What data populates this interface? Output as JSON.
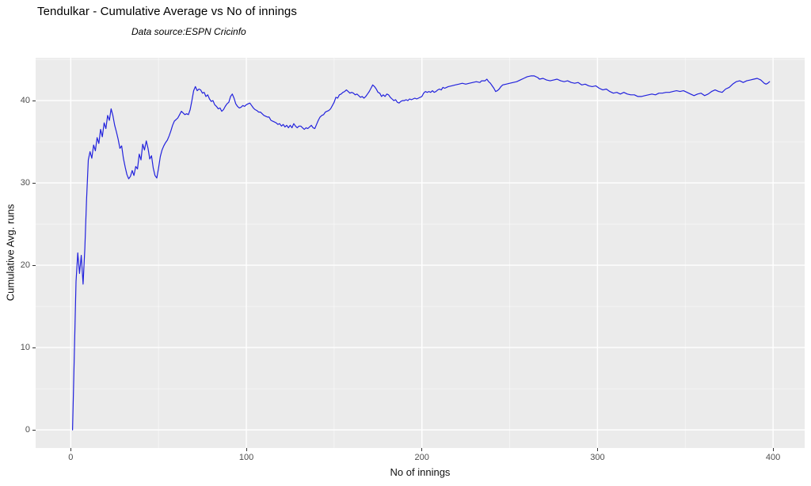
{
  "header": {
    "title": "Tendulkar - Cumulative Average vs No of innings",
    "subtitle": "Data source:ESPN Cricinfo"
  },
  "chart_data": {
    "type": "line",
    "title": "Tendulkar - Cumulative Average vs No of innings",
    "subtitle": "Data source:ESPN Cricinfo",
    "xlabel": "No of innings",
    "ylabel": "Cumulative Avg. runs",
    "x_ticks": [
      0,
      100,
      200,
      300,
      400
    ],
    "x_minor_ticks": [
      50,
      150,
      250,
      350
    ],
    "y_ticks": [
      0,
      10,
      20,
      30,
      40
    ],
    "y_minor_ticks": [
      5,
      15,
      25,
      35,
      45
    ],
    "xlim": [
      -20,
      418
    ],
    "ylim": [
      -2.2,
      45.2
    ],
    "grid": "major-and-minor-white",
    "legend": "none",
    "panel_bg": "#EBEBEB",
    "grid_major_color": "#FFFFFF",
    "grid_minor_color": "#FFFFFF",
    "line_color": "#2222DD",
    "axis_text_color": "#4D4D4D",
    "tick_mark_color": "#333333",
    "series": [
      {
        "name": "Cumulative average runs",
        "points": [
          [
            1,
            0
          ],
          [
            2,
            9
          ],
          [
            3,
            18
          ],
          [
            4,
            21.5
          ],
          [
            5,
            19
          ],
          [
            6,
            21.2
          ],
          [
            7,
            17.7
          ],
          [
            8,
            22
          ],
          [
            9,
            28
          ],
          [
            10,
            32.8
          ],
          [
            11,
            33.8
          ],
          [
            12,
            33
          ],
          [
            13,
            34.6
          ],
          [
            14,
            33.9
          ],
          [
            15,
            35.5
          ],
          [
            16,
            34.8
          ],
          [
            17,
            36.5
          ],
          [
            18,
            35.6
          ],
          [
            19,
            37.3
          ],
          [
            20,
            36.6
          ],
          [
            21,
            38.2
          ],
          [
            22,
            37.6
          ],
          [
            23,
            39
          ],
          [
            24,
            38.2
          ],
          [
            25,
            37
          ],
          [
            26,
            36.2
          ],
          [
            27,
            35.3
          ],
          [
            28,
            34.2
          ],
          [
            29,
            34.5
          ],
          [
            30,
            33
          ],
          [
            31,
            31.9
          ],
          [
            32,
            31
          ],
          [
            33,
            30.5
          ],
          [
            34,
            30.8
          ],
          [
            35,
            31.5
          ],
          [
            36,
            30.9
          ],
          [
            37,
            32
          ],
          [
            38,
            31.7
          ],
          [
            39,
            33.5
          ],
          [
            40,
            32.8
          ],
          [
            41,
            34.7
          ],
          [
            42,
            34
          ],
          [
            43,
            35.1
          ],
          [
            44,
            34.2
          ],
          [
            45,
            32.9
          ],
          [
            46,
            33.3
          ],
          [
            47,
            31.8
          ],
          [
            48,
            30.9
          ],
          [
            49,
            30.6
          ],
          [
            50,
            31.8
          ],
          [
            51,
            33.2
          ],
          [
            52,
            34
          ],
          [
            53,
            34.5
          ],
          [
            54,
            34.9
          ],
          [
            55,
            35.2
          ],
          [
            56,
            35.7
          ],
          [
            57,
            36.3
          ],
          [
            58,
            37
          ],
          [
            59,
            37.5
          ],
          [
            60,
            37.7
          ],
          [
            61,
            37.9
          ],
          [
            62,
            38.3
          ],
          [
            63,
            38.7
          ],
          [
            64,
            38.5
          ],
          [
            65,
            38.3
          ],
          [
            66,
            38.4
          ],
          [
            67,
            38.3
          ],
          [
            68,
            38.9
          ],
          [
            69,
            40
          ],
          [
            70,
            41.2
          ],
          [
            71,
            41.7
          ],
          [
            72,
            41.2
          ],
          [
            73,
            41.4
          ],
          [
            74,
            41.3
          ],
          [
            75,
            40.9
          ],
          [
            76,
            41
          ],
          [
            77,
            40.5
          ],
          [
            78,
            40.7
          ],
          [
            79,
            40.2
          ],
          [
            80,
            39.9
          ],
          [
            81,
            40
          ],
          [
            82,
            39.5
          ],
          [
            83,
            39.3
          ],
          [
            84,
            39
          ],
          [
            85,
            39.1
          ],
          [
            86,
            38.7
          ],
          [
            87,
            38.9
          ],
          [
            88,
            39.3
          ],
          [
            89,
            39.6
          ],
          [
            90,
            39.8
          ],
          [
            91,
            40.5
          ],
          [
            92,
            40.8
          ],
          [
            93,
            40.3
          ],
          [
            94,
            39.6
          ],
          [
            95,
            39.3
          ],
          [
            96,
            39.1
          ],
          [
            97,
            39.2
          ],
          [
            98,
            39.4
          ],
          [
            99,
            39.3
          ],
          [
            100,
            39.5
          ],
          [
            101,
            39.6
          ],
          [
            102,
            39.7
          ],
          [
            103,
            39.4
          ],
          [
            104,
            39.1
          ],
          [
            105,
            38.9
          ],
          [
            106,
            38.8
          ],
          [
            107,
            38.6
          ],
          [
            108,
            38.6
          ],
          [
            109,
            38.4
          ],
          [
            110,
            38.2
          ],
          [
            111,
            38.1
          ],
          [
            112,
            38
          ],
          [
            113,
            38
          ],
          [
            114,
            37.6
          ],
          [
            115,
            37.5
          ],
          [
            116,
            37.4
          ],
          [
            117,
            37.3
          ],
          [
            118,
            37.1
          ],
          [
            119,
            37.2
          ],
          [
            120,
            36.9
          ],
          [
            121,
            37.1
          ],
          [
            122,
            36.8
          ],
          [
            123,
            37
          ],
          [
            124,
            36.7
          ],
          [
            125,
            37
          ],
          [
            126,
            36.7
          ],
          [
            127,
            37.2
          ],
          [
            128,
            36.9
          ],
          [
            129,
            36.7
          ],
          [
            130,
            36.9
          ],
          [
            131,
            36.9
          ],
          [
            132,
            36.7
          ],
          [
            133,
            36.5
          ],
          [
            134,
            36.7
          ],
          [
            135,
            36.6
          ],
          [
            136,
            36.8
          ],
          [
            137,
            37
          ],
          [
            138,
            36.7
          ],
          [
            139,
            36.6
          ],
          [
            140,
            37.1
          ],
          [
            141,
            37.6
          ],
          [
            142,
            38
          ],
          [
            143,
            38.2
          ],
          [
            144,
            38.3
          ],
          [
            145,
            38.6
          ],
          [
            146,
            38.7
          ],
          [
            147,
            38.8
          ],
          [
            148,
            39
          ],
          [
            149,
            39.4
          ],
          [
            150,
            39.8
          ],
          [
            151,
            40.4
          ],
          [
            152,
            40.3
          ],
          [
            153,
            40.7
          ],
          [
            154,
            40.8
          ],
          [
            155,
            41
          ],
          [
            156,
            41.1
          ],
          [
            157,
            41.3
          ],
          [
            158,
            41.1
          ],
          [
            159,
            40.9
          ],
          [
            160,
            41
          ],
          [
            161,
            40.9
          ],
          [
            162,
            40.7
          ],
          [
            163,
            40.8
          ],
          [
            164,
            40.6
          ],
          [
            165,
            40.4
          ],
          [
            166,
            40.5
          ],
          [
            167,
            40.3
          ],
          [
            168,
            40.5
          ],
          [
            169,
            40.8
          ],
          [
            170,
            41.1
          ],
          [
            171,
            41.5
          ],
          [
            172,
            41.9
          ],
          [
            173,
            41.7
          ],
          [
            174,
            41.4
          ],
          [
            175,
            41
          ],
          [
            176,
            40.9
          ],
          [
            177,
            40.5
          ],
          [
            178,
            40.7
          ],
          [
            179,
            40.5
          ],
          [
            180,
            40.8
          ],
          [
            181,
            40.7
          ],
          [
            182,
            40.4
          ],
          [
            183,
            40.2
          ],
          [
            184,
            40
          ],
          [
            185,
            40.1
          ],
          [
            186,
            39.8
          ],
          [
            187,
            39.7
          ],
          [
            188,
            39.9
          ],
          [
            189,
            40
          ],
          [
            190,
            40
          ],
          [
            191,
            40.1
          ],
          [
            192,
            40
          ],
          [
            193,
            40.2
          ],
          [
            194,
            40.1
          ],
          [
            195,
            40.2
          ],
          [
            196,
            40.3
          ],
          [
            197,
            40.2
          ],
          [
            198,
            40.3
          ],
          [
            199,
            40.4
          ],
          [
            200,
            40.5
          ],
          [
            201,
            40.9
          ],
          [
            202,
            41.1
          ],
          [
            203,
            41
          ],
          [
            204,
            41.1
          ],
          [
            205,
            41
          ],
          [
            206,
            41.2
          ],
          [
            207,
            41
          ],
          [
            208,
            41.1
          ],
          [
            209,
            41.3
          ],
          [
            210,
            41.4
          ],
          [
            211,
            41.3
          ],
          [
            212,
            41.6
          ],
          [
            213,
            41.5
          ],
          [
            214,
            41.6
          ],
          [
            215,
            41.7
          ],
          [
            217,
            41.8
          ],
          [
            219,
            41.9
          ],
          [
            221,
            42
          ],
          [
            223,
            42.1
          ],
          [
            225,
            42
          ],
          [
            227,
            42.1
          ],
          [
            229,
            42.2
          ],
          [
            231,
            42.3
          ],
          [
            233,
            42.2
          ],
          [
            234,
            42.4
          ],
          [
            236,
            42.4
          ],
          [
            237,
            42.6
          ],
          [
            238,
            42.3
          ],
          [
            239,
            42.1
          ],
          [
            240,
            41.8
          ],
          [
            241,
            41.5
          ],
          [
            242,
            41.1
          ],
          [
            243,
            41.2
          ],
          [
            244,
            41.4
          ],
          [
            245,
            41.7
          ],
          [
            246,
            41.9
          ],
          [
            248,
            42
          ],
          [
            250,
            42.1
          ],
          [
            252,
            42.2
          ],
          [
            254,
            42.3
          ],
          [
            256,
            42.5
          ],
          [
            258,
            42.7
          ],
          [
            260,
            42.9
          ],
          [
            262,
            43
          ],
          [
            264,
            43
          ],
          [
            266,
            42.8
          ],
          [
            267,
            42.6
          ],
          [
            269,
            42.7
          ],
          [
            271,
            42.5
          ],
          [
            273,
            42.4
          ],
          [
            275,
            42.5
          ],
          [
            277,
            42.6
          ],
          [
            279,
            42.4
          ],
          [
            281,
            42.3
          ],
          [
            283,
            42.4
          ],
          [
            285,
            42.2
          ],
          [
            287,
            42.1
          ],
          [
            289,
            42.2
          ],
          [
            291,
            41.9
          ],
          [
            293,
            42
          ],
          [
            295,
            41.8
          ],
          [
            297,
            41.7
          ],
          [
            299,
            41.8
          ],
          [
            301,
            41.5
          ],
          [
            303,
            41.3
          ],
          [
            305,
            41.4
          ],
          [
            307,
            41.1
          ],
          [
            309,
            40.9
          ],
          [
            311,
            41
          ],
          [
            313,
            40.8
          ],
          [
            315,
            41
          ],
          [
            317,
            40.8
          ],
          [
            319,
            40.7
          ],
          [
            321,
            40.7
          ],
          [
            323,
            40.5
          ],
          [
            325,
            40.5
          ],
          [
            327,
            40.6
          ],
          [
            329,
            40.7
          ],
          [
            331,
            40.8
          ],
          [
            333,
            40.7
          ],
          [
            335,
            40.9
          ],
          [
            337,
            40.9
          ],
          [
            339,
            41
          ],
          [
            341,
            41
          ],
          [
            343,
            41.1
          ],
          [
            345,
            41.2
          ],
          [
            347,
            41.1
          ],
          [
            349,
            41.2
          ],
          [
            351,
            41
          ],
          [
            353,
            40.8
          ],
          [
            355,
            40.6
          ],
          [
            357,
            40.8
          ],
          [
            359,
            40.9
          ],
          [
            361,
            40.6
          ],
          [
            363,
            40.8
          ],
          [
            365,
            41.1
          ],
          [
            367,
            41.3
          ],
          [
            369,
            41.1
          ],
          [
            371,
            41
          ],
          [
            373,
            41.4
          ],
          [
            375,
            41.6
          ],
          [
            377,
            42
          ],
          [
            379,
            42.3
          ],
          [
            381,
            42.4
          ],
          [
            383,
            42.2
          ],
          [
            385,
            42.4
          ],
          [
            387,
            42.5
          ],
          [
            389,
            42.6
          ],
          [
            391,
            42.7
          ],
          [
            393,
            42.5
          ],
          [
            395,
            42.1
          ],
          [
            396,
            42
          ],
          [
            397,
            42.1
          ],
          [
            398,
            42.3
          ]
        ]
      }
    ]
  }
}
